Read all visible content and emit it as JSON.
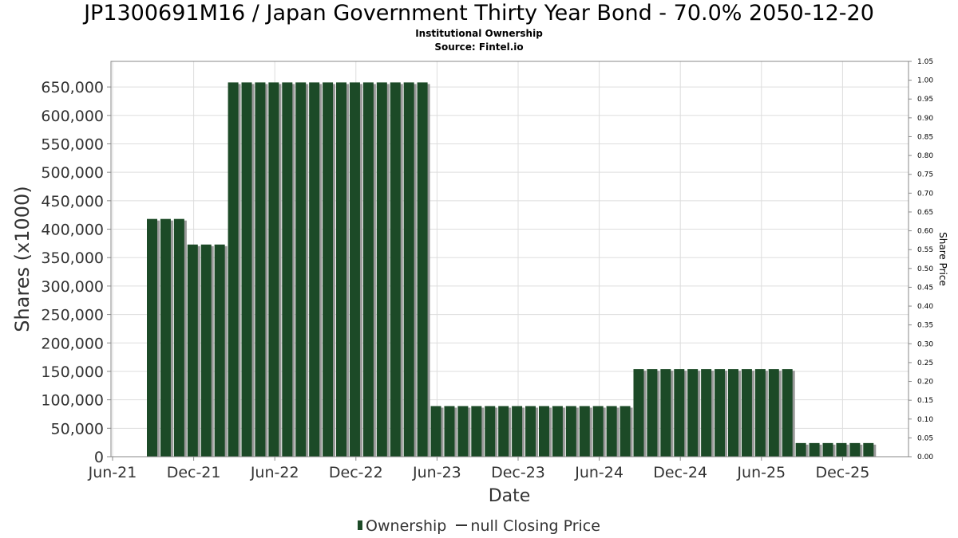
{
  "title": "JP1300691M16 / Japan Government Thirty Year Bond - 70.0% 2050-12-20",
  "subtitle_1": "Institutional Ownership",
  "subtitle_2": "Source: Fintel.io",
  "legend": {
    "ownership_label": "Ownership",
    "price_label": "null Closing Price"
  },
  "colors": {
    "bar": "#1c4a27",
    "bar_shadow": "#999999",
    "grid": "#dddddd",
    "axis_text": "#333333"
  },
  "chart_data": {
    "type": "bar",
    "title": "JP1300691M16 / Japan Government Thirty Year Bond - 70.0% 2050-12-20",
    "xlabel": "Date",
    "ylabel": "Shares (x1000)",
    "y2label": "Share Price",
    "ylim": [
      0,
      695000
    ],
    "y2lim": [
      0,
      1.05
    ],
    "yticks": [
      0,
      50000,
      100000,
      150000,
      200000,
      250000,
      300000,
      350000,
      400000,
      450000,
      500000,
      550000,
      600000,
      650000
    ],
    "ytick_labels": [
      "0",
      "50,000",
      "100,000",
      "150,000",
      "200,000",
      "250,000",
      "300,000",
      "350,000",
      "400,000",
      "450,000",
      "500,000",
      "550,000",
      "600,000",
      "650,000"
    ],
    "y2ticks": [
      "0.00",
      "0.05",
      "0.10",
      "0.15",
      "0.20",
      "0.25",
      "0.30",
      "0.35",
      "0.40",
      "0.45",
      "0.50",
      "0.55",
      "0.60",
      "0.65",
      "0.70",
      "0.75",
      "0.80",
      "0.85",
      "0.90",
      "0.95",
      "1.00",
      "1.05"
    ],
    "xticks": [
      "Jun-21",
      "Dec-21",
      "Jun-22",
      "Dec-22",
      "Jun-23",
      "Dec-23",
      "Jun-24",
      "Dec-24",
      "Jun-25",
      "Dec-25"
    ],
    "grid": true,
    "legend_position": "bottom",
    "series": [
      {
        "name": "Ownership",
        "values": [
          418000,
          418000,
          418000,
          373000,
          373000,
          373000,
          658000,
          658000,
          658000,
          658000,
          658000,
          658000,
          658000,
          658000,
          658000,
          658000,
          658000,
          658000,
          658000,
          658000,
          658000,
          89000,
          89000,
          89000,
          89000,
          89000,
          89000,
          89000,
          89000,
          89000,
          89000,
          89000,
          89000,
          89000,
          89000,
          89000,
          154000,
          154000,
          154000,
          154000,
          154000,
          154000,
          154000,
          154000,
          154000,
          154000,
          154000,
          154000,
          24000,
          24000,
          24000,
          24000,
          24000,
          24000
        ]
      },
      {
        "name": "null Closing Price",
        "values": []
      }
    ]
  }
}
